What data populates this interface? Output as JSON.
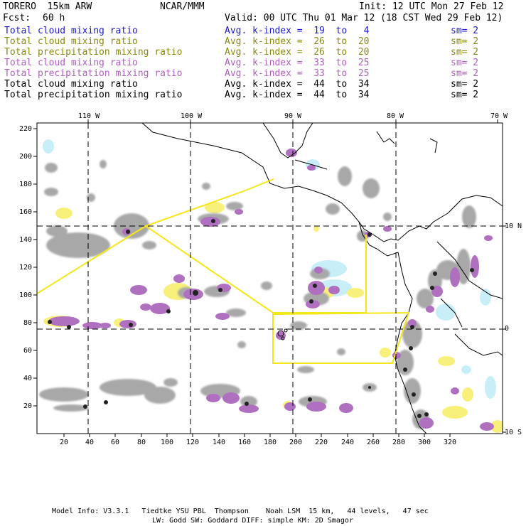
{
  "header": {
    "model": "TORERO  15km ARW",
    "org": "NCAR/MMM",
    "init": "Init: 12 UTC Mon 27 Feb 12",
    "fcst_label": "Fcst:",
    "fcst_value": "60 h",
    "valid": "Valid: 00 UTC Thu 01 Mar 12 (18 CST Wed 29 Feb 12)"
  },
  "legend": [
    {
      "field": "Total cloud mixing ratio",
      "index": "Avg. k-index =  19  to   4",
      "sm": "sm= 2",
      "color": "#1c1cc8"
    },
    {
      "field": "Total cloud mixing ratio",
      "index": "Avg. k-index =  26  to  20",
      "sm": "sm= 2",
      "color": "#8a8a10"
    },
    {
      "field": "Total precipitation mixing ratio",
      "index": "Avg. k-index =  26  to  20",
      "sm": "sm= 2",
      "color": "#8a8a10"
    },
    {
      "field": "Total cloud mixing ratio",
      "index": "Avg. k-index =  33  to  25",
      "sm": "sm= 2",
      "color": "#b060c0"
    },
    {
      "field": "Total precipitation mixing ratio",
      "index": "Avg. k-index =  33  to  25",
      "sm": "sm= 2",
      "color": "#b060c0"
    },
    {
      "field": "Total cloud mixing ratio",
      "index": "Avg. k-index =  44  to  34",
      "sm": "sm= 2",
      "color": "#000000"
    },
    {
      "field": "Total precipitation mixing ratio",
      "index": "Avg. k-index =  44  to  34",
      "sm": "sm= 2",
      "color": "#000000"
    }
  ],
  "map": {
    "top_lon_labels": [
      "110 W",
      "100 W",
      "90 W",
      "80 W",
      "70 W"
    ],
    "right_lat_labels": [
      "10 N",
      "0",
      "10 S"
    ],
    "y_ticks": [
      "220",
      "200",
      "180",
      "160",
      "140",
      "120",
      "100",
      "80",
      "60",
      "40",
      "20"
    ],
    "x_ticks": [
      "20",
      "40",
      "60",
      "80",
      "100",
      "120",
      "140",
      "160",
      "180",
      "200",
      "220",
      "240",
      "260",
      "280",
      "300",
      "320"
    ],
    "colors": {
      "flight_track": "#f5e61a",
      "gray_cloud": "#a8a8a8",
      "violet_precip": "#b070c0",
      "yellow_cloud": "#f7f07a",
      "cyan_cloud": "#c8eef8"
    }
  },
  "footer": {
    "line1": "Model Info: V3.3.1   Tiedtke YSU PBL  Thompson    Noah LSM  15 km,   44 levels,   47 sec",
    "line2": "LW: Godd SW: Goddard DIFF: simple KM: 2D Smagor"
  }
}
